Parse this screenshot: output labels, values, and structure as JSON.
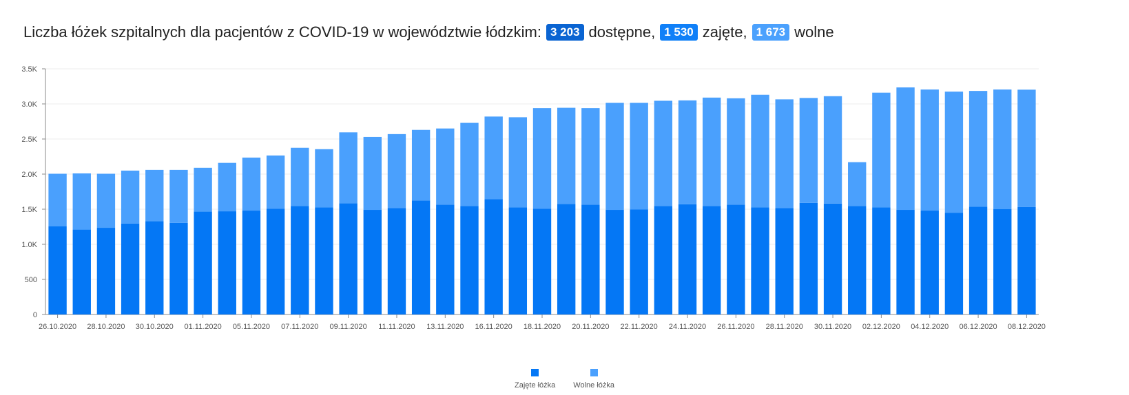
{
  "header": {
    "title": "Liczba łóżek szpitalnych dla pacjentów z COVID-19 w województwie łódzkim:",
    "available_value": "3 203",
    "available_label": "dostępne,",
    "occupied_value": "1 530",
    "occupied_label": "zajęte,",
    "free_value": "1 673",
    "free_label": "wolne"
  },
  "colors": {
    "occupied": "#0477f5",
    "free": "#4aa0fd",
    "badge_available": "#0a64d2",
    "badge_occupied": "#1080f8",
    "badge_free": "#4ba1fd"
  },
  "chart_data": {
    "type": "bar",
    "stacked": true,
    "categories": [
      "26.10.2020",
      "27.10.2020",
      "28.10.2020",
      "29.10.2020",
      "30.10.2020",
      "31.10.2020",
      "01.11.2020",
      "02.11.2020",
      "05.11.2020",
      "06.11.2020",
      "07.11.2020",
      "08.11.2020",
      "09.11.2020",
      "10.11.2020",
      "11.11.2020",
      "12.11.2020",
      "13.11.2020",
      "14.11.2020",
      "16.11.2020",
      "17.11.2020",
      "18.11.2020",
      "19.11.2020",
      "20.11.2020",
      "21.11.2020",
      "22.11.2020",
      "23.11.2020",
      "24.11.2020",
      "25.11.2020",
      "26.11.2020",
      "27.11.2020",
      "28.11.2020",
      "29.11.2020",
      "30.11.2020",
      "01.12.2020",
      "02.12.2020",
      "03.12.2020",
      "04.12.2020",
      "05.12.2020",
      "06.12.2020",
      "07.12.2020",
      "08.12.2020"
    ],
    "x_tick_labels": [
      "26.10.2020",
      "28.10.2020",
      "30.10.2020",
      "01.11.2020",
      "05.11.2020",
      "07.11.2020",
      "09.11.2020",
      "11.11.2020",
      "13.11.2020",
      "16.11.2020",
      "18.11.2020",
      "20.11.2020",
      "22.11.2020",
      "24.11.2020",
      "26.11.2020",
      "28.11.2020",
      "30.11.2020",
      "02.12.2020",
      "04.12.2020",
      "06.12.2020",
      "08.12.2020"
    ],
    "series": [
      {
        "name": "Zajęte łóżka",
        "values": [
          1255,
          1210,
          1235,
          1295,
          1330,
          1305,
          1465,
          1470,
          1480,
          1505,
          1545,
          1525,
          1585,
          1490,
          1515,
          1625,
          1565,
          1545,
          1645,
          1525,
          1505,
          1575,
          1565,
          1490,
          1495,
          1545,
          1570,
          1545,
          1565,
          1525,
          1515,
          1590,
          1580,
          1545,
          1525,
          1490,
          1480,
          1450,
          1535,
          1500,
          1530
        ]
      },
      {
        "name": "Wolne łóżka",
        "values": [
          750,
          800,
          770,
          755,
          730,
          755,
          625,
          690,
          755,
          760,
          830,
          830,
          1010,
          1040,
          1055,
          1005,
          1085,
          1185,
          1175,
          1285,
          1435,
          1370,
          1375,
          1525,
          1520,
          1500,
          1480,
          1545,
          1515,
          1605,
          1550,
          1495,
          1530,
          625,
          1635,
          1745,
          1725,
          1725,
          1650,
          1705,
          1673
        ]
      }
    ],
    "ylim": [
      0,
      3500
    ],
    "y_ticks": [
      "0",
      "500",
      "1.0K",
      "1.5K",
      "2.0K",
      "2.5K",
      "3.0K",
      "3.5K"
    ],
    "grid": true,
    "legend_position": "bottom"
  }
}
